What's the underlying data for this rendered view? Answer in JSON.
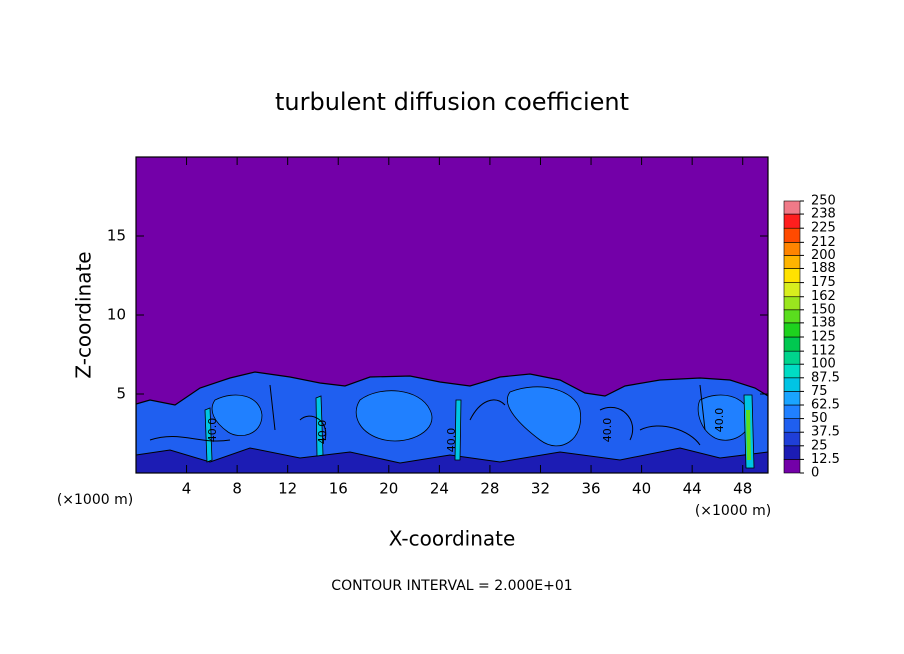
{
  "chart_data": {
    "type": "contour",
    "title": "turbulent diffusion coefficient",
    "xlabel": "X-coordinate",
    "ylabel": "Z-coordinate",
    "x_unit_left": "(×1000 m)",
    "x_unit_right": "(×1000 m)",
    "footer": "CONTOUR INTERVAL = 2.000E+01",
    "xlim": [
      0,
      50
    ],
    "ylim": [
      0,
      20
    ],
    "xticks": [
      4,
      8,
      12,
      16,
      20,
      24,
      28,
      32,
      36,
      40,
      44,
      48
    ],
    "yticks": [
      5,
      10,
      15
    ],
    "contour_labels": [
      "40.0",
      "40.0",
      "40.0",
      "40.0",
      "40.0"
    ],
    "colorbar": {
      "ticks": [
        0,
        12.5,
        25,
        37.5,
        50,
        62.5,
        75,
        87.5,
        100,
        112,
        125,
        138,
        150,
        162,
        175,
        188,
        200,
        212,
        225,
        238,
        250
      ],
      "colors": [
        "#7300a8",
        "#1c1cb4",
        "#1f3fd8",
        "#1f5ff0",
        "#2080ff",
        "#1aa4ff",
        "#00c4e4",
        "#00dcc4",
        "#00d48c",
        "#00c850",
        "#1ed21e",
        "#5ade1e",
        "#9ae61e",
        "#d8ee1e",
        "#ffe200",
        "#ffb400",
        "#ff8400",
        "#ff4a00",
        "#ff1e1e",
        "#f07a88"
      ]
    }
  }
}
